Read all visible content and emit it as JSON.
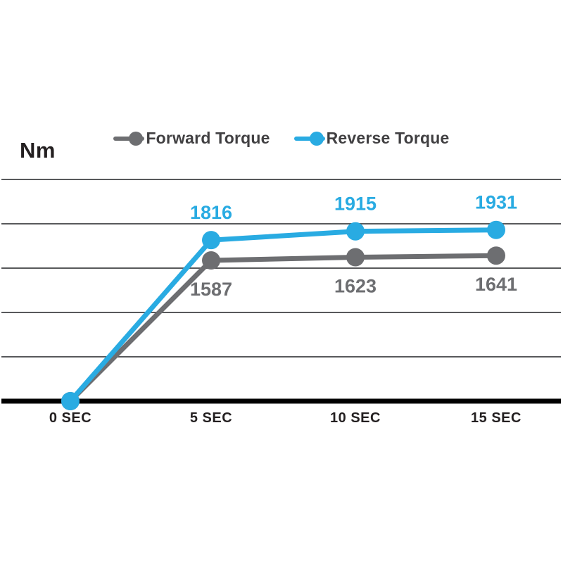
{
  "chart_data": {
    "type": "line",
    "unit_label": "Nm",
    "categories": [
      "0 SEC",
      "5 SEC",
      "10 SEC",
      "15 SEC"
    ],
    "x_seconds": [
      0,
      5,
      10,
      15
    ],
    "series": [
      {
        "name": "Forward Torque",
        "color": "#6d6e71",
        "values": [
          0,
          1587,
          1623,
          1641
        ],
        "data_labels": [
          "",
          "1587",
          "1623",
          "1641"
        ],
        "label_position": "below"
      },
      {
        "name": "Reverse Torque",
        "color": "#29abe2",
        "values": [
          0,
          1816,
          1915,
          1931
        ],
        "data_labels": [
          "",
          "1816",
          "1915",
          "1931"
        ],
        "label_position": "above"
      }
    ],
    "ylim": [
      0,
      2500
    ],
    "gridline_step": 500,
    "grid": true,
    "legend_position": "top-center",
    "colors": {
      "axis": "#000000",
      "gridline": "#58595b",
      "tick_label": "#231f20",
      "legend_text": "#414042",
      "background": "#ffffff"
    }
  }
}
